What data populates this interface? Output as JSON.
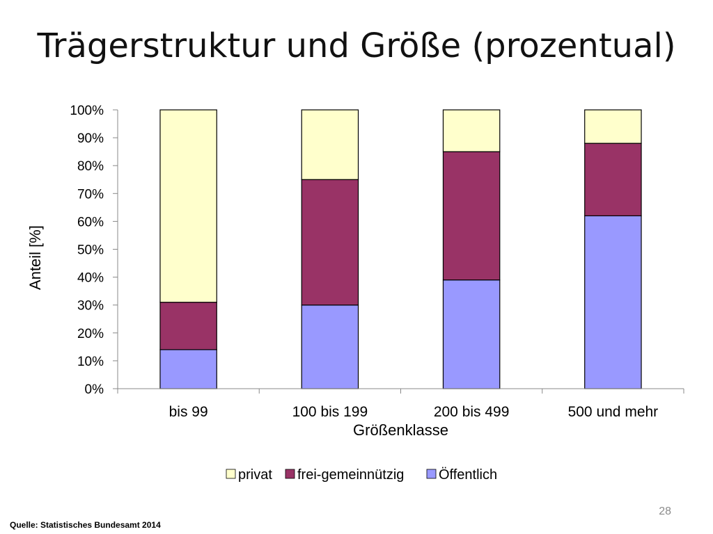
{
  "slide": {
    "title": "Trägerstruktur und Größe (prozentual)",
    "source": "Quelle: Statistisches Bundesamt 2014",
    "page_number": "28"
  },
  "chart_data": {
    "type": "bar",
    "stacked": true,
    "title": "",
    "xlabel": "Größenklasse",
    "ylabel": "Anteil [%]",
    "ylim": [
      0,
      100
    ],
    "yticks": [
      "0%",
      "10%",
      "20%",
      "30%",
      "40%",
      "50%",
      "60%",
      "70%",
      "80%",
      "90%",
      "100%"
    ],
    "categories": [
      "bis 99",
      "100 bis 199",
      "200 bis 499",
      "500 und mehr"
    ],
    "series": [
      {
        "name": "Öffentlich",
        "color": "#9999ff",
        "values": [
          14,
          30,
          39,
          62
        ]
      },
      {
        "name": "frei-gemeinnützig",
        "color": "#993366",
        "values": [
          17,
          45,
          46,
          26
        ]
      },
      {
        "name": "privat",
        "color": "#ffffcc",
        "values": [
          69,
          25,
          15,
          12
        ]
      }
    ],
    "legend": {
      "placement": "bottom",
      "order": [
        "privat",
        "frei-gemeinnützig",
        "Öffentlich"
      ]
    },
    "grid": false
  }
}
